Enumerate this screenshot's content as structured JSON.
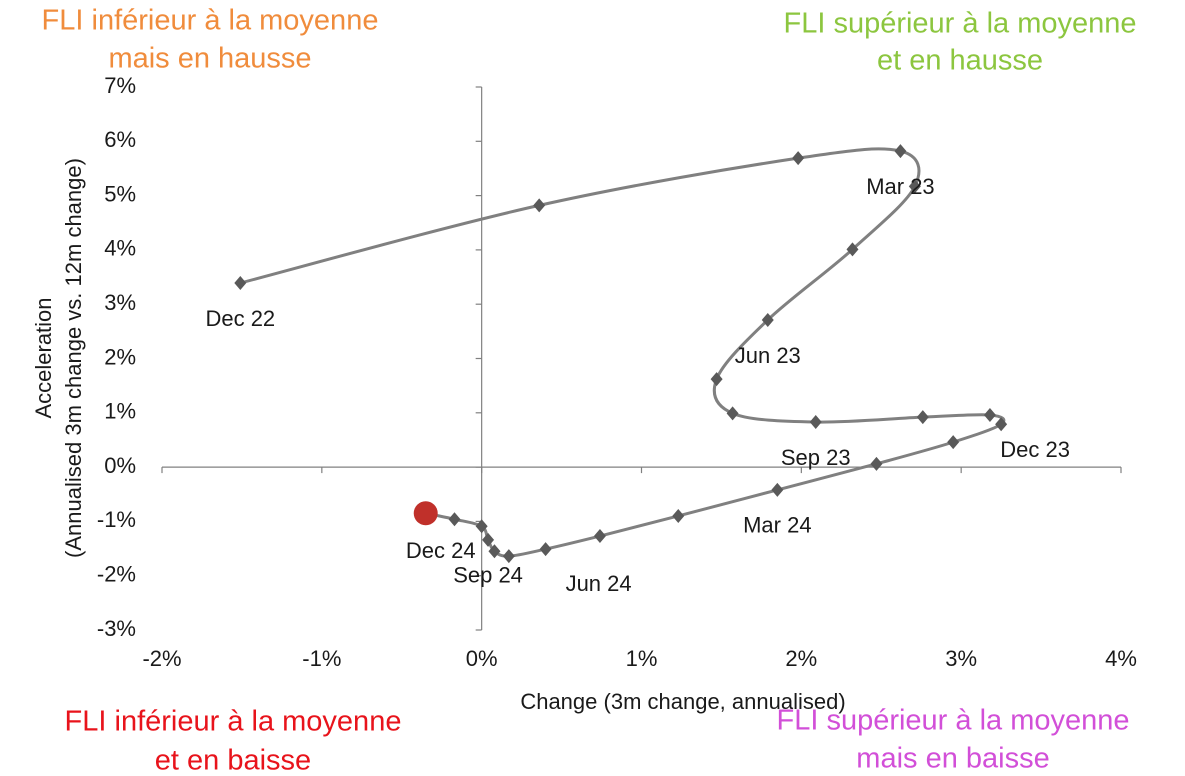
{
  "chart_data": {
    "type": "line",
    "x_label": "Change (3m change, annualised)",
    "y_label": [
      "Acceleration",
      "(Annualised 3m change vs. 12m change)"
    ],
    "x": [
      -1.51,
      0.36,
      1.98,
      2.62,
      2.71,
      2.32,
      1.79,
      1.47,
      1.57,
      2.09,
      2.76,
      3.18,
      3.25,
      2.95,
      2.47,
      1.85,
      1.23,
      0.74,
      0.4,
      0.17,
      0.08,
      0.04,
      0.0,
      -0.17,
      -0.35
    ],
    "values": [
      3.39,
      4.82,
      5.69,
      5.82,
      5.17,
      4.01,
      2.71,
      1.62,
      0.99,
      0.83,
      0.92,
      0.96,
      0.79,
      0.46,
      0.06,
      -0.42,
      -0.9,
      -1.27,
      -1.51,
      -1.64,
      -1.55,
      -1.34,
      -1.09,
      -0.96,
      -0.85
    ],
    "point_labels": [
      "Dec 22",
      null,
      null,
      "Mar 23",
      null,
      null,
      "Jun 23",
      null,
      null,
      "Sep 23",
      null,
      null,
      "Dec 23",
      null,
      null,
      "Mar 24",
      null,
      null,
      "Jun 24",
      null,
      null,
      "Sep 24",
      null,
      null,
      "Dec 24"
    ],
    "color": "#808080",
    "marker_color": "#595959",
    "last_point_color": "#c0302a",
    "xlim": [
      -2,
      4
    ],
    "ylim": [
      -3,
      7
    ],
    "xticks": [
      {
        "value": -2,
        "label": "-2%"
      },
      {
        "value": -1,
        "label": "-1%"
      },
      {
        "value": 0,
        "label": "0%"
      },
      {
        "value": 1,
        "label": "1%"
      },
      {
        "value": 2,
        "label": "2%"
      },
      {
        "value": 3,
        "label": "3%"
      },
      {
        "value": 4,
        "label": "4%"
      }
    ],
    "yticks": [
      {
        "value": -3,
        "label": "-3%"
      },
      {
        "value": -2,
        "label": "-2%"
      },
      {
        "value": -1,
        "label": "-1%"
      },
      {
        "value": 0,
        "label": "0%"
      },
      {
        "value": 1,
        "label": "1%"
      },
      {
        "value": 2,
        "label": "2%"
      },
      {
        "value": 3,
        "label": "3%"
      },
      {
        "value": 4,
        "label": "4%"
      },
      {
        "value": 5,
        "label": "5%"
      },
      {
        "value": 6,
        "label": "6%"
      },
      {
        "value": 7,
        "label": "7%"
      }
    ],
    "quadrant_labels": [
      {
        "lines": [
          "FLI inférieur à la moyenne",
          "mais en hausse"
        ],
        "color": "#f08c3c"
      },
      {
        "lines": [
          "FLI supérieur à la moyenne",
          "et en hausse"
        ],
        "color": "#8cc63f"
      },
      {
        "lines": [
          "FLI inférieur à la moyenne",
          "et en baisse"
        ],
        "color": "#e8131b"
      },
      {
        "lines": [
          "FLI supérieur à la moyenne",
          "mais en baisse"
        ],
        "color": "#d24fd8"
      }
    ]
  }
}
